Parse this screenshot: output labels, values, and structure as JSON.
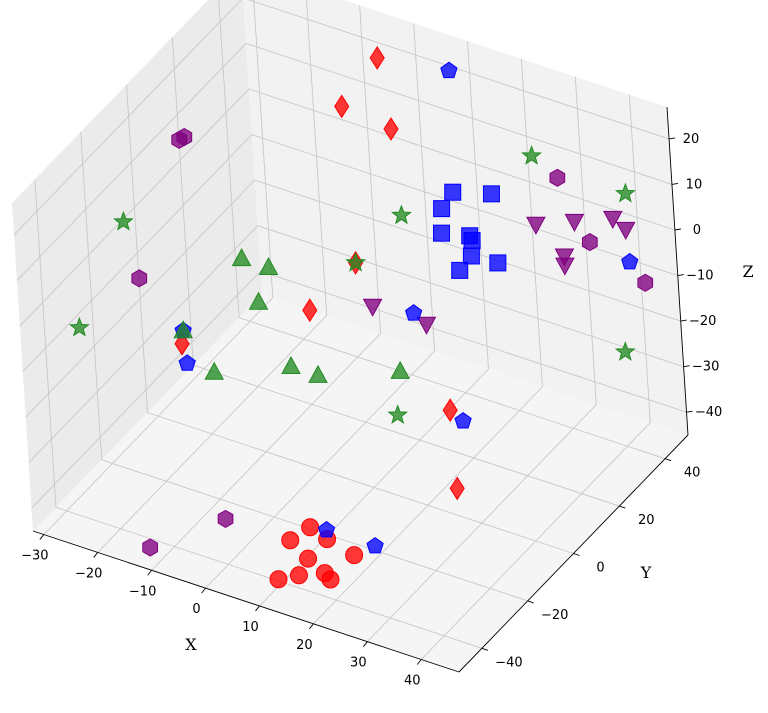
{
  "chart_data": {
    "type": "scatter",
    "title": "",
    "xlabel": "X",
    "ylabel": "Y",
    "zlabel": "Z",
    "xlim": [
      -32,
      47
    ],
    "ylim": [
      -50,
      50
    ],
    "zlim": [
      -45,
      27
    ],
    "xticks": [
      -30,
      -20,
      -10,
      0,
      10,
      20,
      30,
      40
    ],
    "yticks": [
      -40,
      -20,
      0,
      20,
      40
    ],
    "zticks": [
      -40,
      -30,
      -20,
      -10,
      0,
      10,
      20
    ],
    "grid": true,
    "legend": "none",
    "series": [
      {
        "marker": "circle",
        "color": "#ff0000",
        "points": [
          [
            12,
            -40,
            -35
          ],
          [
            17,
            -44,
            -35
          ],
          [
            15,
            -38,
            -32
          ],
          [
            19,
            -40,
            -32
          ],
          [
            13,
            -48,
            -39
          ],
          [
            20,
            -44,
            -37
          ],
          [
            23,
            -38,
            -35
          ],
          [
            21,
            -44,
            -38
          ],
          [
            16,
            -46,
            -38
          ]
        ]
      },
      {
        "marker": "square",
        "color": "#0000ff",
        "points": [
          [
            10,
            40,
            -1
          ],
          [
            10,
            35,
            -2
          ],
          [
            12,
            30,
            -4
          ],
          [
            15,
            45,
            -2
          ],
          [
            15,
            35,
            -6
          ],
          [
            14,
            38,
            -9
          ],
          [
            15,
            30,
            -11
          ],
          [
            16,
            33,
            -9
          ],
          [
            20,
            35,
            -10
          ]
        ]
      },
      {
        "marker": "pentagon",
        "color": "#0000ff",
        "points": [
          [
            20,
            20,
            40
          ],
          [
            45,
            35,
            0
          ],
          [
            15,
            10,
            -10
          ],
          [
            30,
            -5,
            -20
          ],
          [
            -15,
            -20,
            -10
          ],
          [
            -10,
            -30,
            -10
          ],
          [
            19,
            -40,
            -30
          ],
          [
            28,
            -40,
            -30
          ]
        ]
      },
      {
        "marker": "triangle-up",
        "color": "#228b22",
        "points": [
          [
            -10,
            -5,
            0
          ],
          [
            -5,
            -5,
            0
          ],
          [
            -5,
            -10,
            -5
          ],
          [
            -15,
            -20,
            -10
          ],
          [
            -5,
            -30,
            -10
          ],
          [
            5,
            -20,
            -10
          ],
          [
            10,
            -20,
            -10
          ],
          [
            21,
            -10,
            -10
          ]
        ]
      },
      {
        "marker": "triangle-down",
        "color": "#800080",
        "points": [
          [
            30,
            30,
            5
          ],
          [
            35,
            35,
            5
          ],
          [
            35,
            30,
            0
          ],
          [
            35,
            30,
            -2
          ],
          [
            40,
            40,
            5
          ],
          [
            40,
            45,
            0
          ],
          [
            5,
            15,
            -15
          ],
          [
            15,
            15,
            -15
          ]
        ]
      },
      {
        "marker": "diamond",
        "color": "#ff0000",
        "points": [
          [
            -10,
            40,
            10
          ],
          [
            0,
            38,
            10
          ],
          [
            -5,
            45,
            20
          ],
          [
            -20,
            -10,
            -20
          ],
          [
            0,
            0,
            -10
          ],
          [
            0,
            20,
            -10
          ],
          [
            30,
            -10,
            -15
          ],
          [
            35,
            -20,
            -25
          ]
        ]
      },
      {
        "marker": "hexagon",
        "color": "#800080",
        "points": [
          [
            -25,
            5,
            15
          ],
          [
            -24,
            5,
            16
          ],
          [
            -25,
            -15,
            -5
          ],
          [
            30,
            40,
            10
          ],
          [
            40,
            30,
            5
          ],
          [
            50,
            30,
            0
          ],
          [
            0,
            -40,
            -35
          ],
          [
            -10,
            -50,
            -40
          ]
        ]
      },
      {
        "marker": "star",
        "color": "#228b22",
        "points": [
          [
            -25,
            -20,
            10
          ],
          [
            30,
            30,
            20
          ],
          [
            45,
            35,
            15
          ],
          [
            0,
            40,
            -10
          ],
          [
            0,
            20,
            -10
          ],
          [
            20,
            -10,
            -20
          ],
          [
            -30,
            -30,
            -10
          ],
          [
            50,
            20,
            -10
          ]
        ]
      }
    ]
  }
}
